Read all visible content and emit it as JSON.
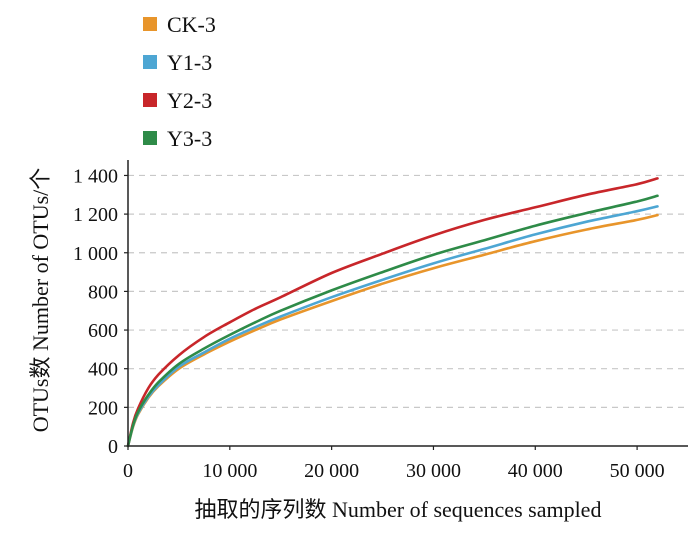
{
  "chart_data": {
    "type": "line",
    "title": "",
    "xlabel": "抽取的序列数  Number of sequences sampled",
    "ylabel": "OTUs数  Number of OTUs/个",
    "xlim": [
      0,
      55000
    ],
    "ylim": [
      0,
      1400
    ],
    "xticks": [
      0,
      10000,
      20000,
      30000,
      40000,
      50000
    ],
    "xtick_labels": [
      "0",
      "10 000",
      "20 000",
      "30 000",
      "40 000",
      "50 000"
    ],
    "yticks": [
      0,
      200,
      400,
      600,
      800,
      1000,
      1200,
      1400
    ],
    "ytick_labels": [
      "0",
      "200",
      "400",
      "600",
      "800",
      "1 000",
      "1 200",
      "1 400"
    ],
    "grid": "horizontal dashed",
    "legend_position": "top-left",
    "x": [
      0,
      500,
      1000,
      2000,
      3000,
      5000,
      7500,
      10000,
      12500,
      15000,
      20000,
      25000,
      30000,
      35000,
      40000,
      45000,
      50000,
      52000
    ],
    "series": [
      {
        "name": "CK-3",
        "color": "#e8952b",
        "values": [
          0,
          100,
          165,
          250,
          310,
          400,
          475,
          540,
          600,
          655,
          750,
          840,
          920,
          990,
          1060,
          1120,
          1170,
          1195
        ]
      },
      {
        "name": "Y1-3",
        "color": "#4da6d3",
        "values": [
          0,
          105,
          170,
          255,
          315,
          410,
          485,
          555,
          615,
          670,
          770,
          860,
          945,
          1020,
          1095,
          1160,
          1215,
          1240
        ]
      },
      {
        "name": "Y2-3",
        "color": "#c8262a",
        "values": [
          0,
          120,
          195,
          300,
          370,
          470,
          565,
          640,
          710,
          770,
          895,
          995,
          1090,
          1170,
          1235,
          1300,
          1355,
          1385
        ]
      },
      {
        "name": "Y3-3",
        "color": "#2e8b48",
        "values": [
          0,
          108,
          178,
          265,
          330,
          425,
          505,
          575,
          640,
          700,
          805,
          900,
          990,
          1065,
          1140,
          1205,
          1265,
          1295
        ]
      }
    ]
  }
}
